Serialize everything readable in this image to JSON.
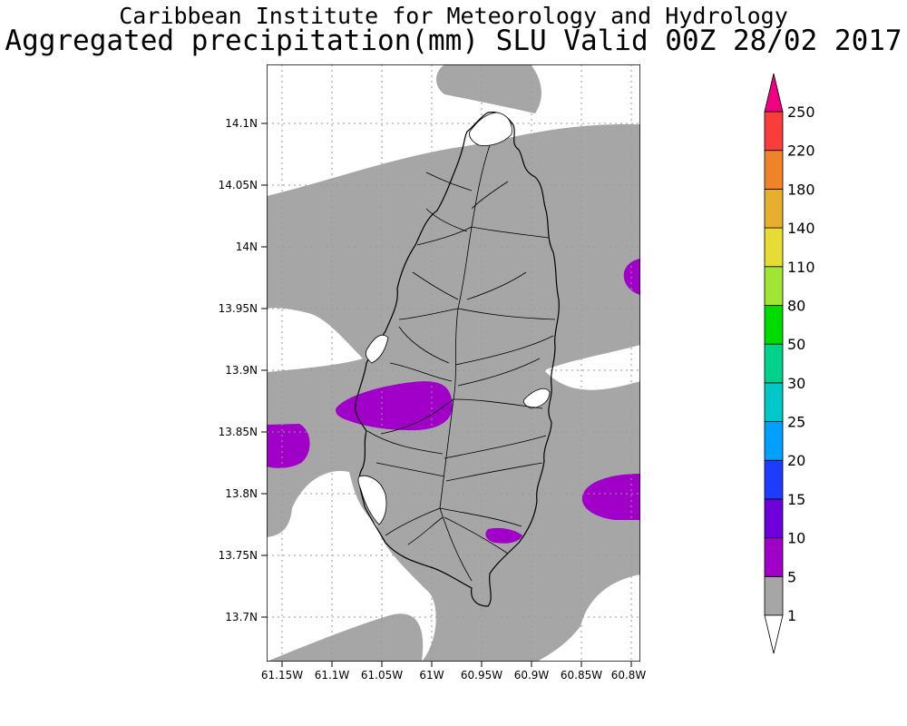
{
  "header": {
    "org": "Caribbean Institute for Meteorology and Hydrology",
    "title": "Aggregated precipitation(mm) SLU Valid 00Z 28/02 2017"
  },
  "map": {
    "region": "Saint Lucia",
    "lon_range": [
      -61.163,
      -60.79
    ],
    "lat_range": [
      13.663,
      14.148
    ],
    "x_ticks": [
      "61.15W",
      "61.1W",
      "61.05W",
      "61W",
      "60.95W",
      "60.9W",
      "60.85W",
      "60.8W"
    ],
    "y_ticks": [
      "14.1N",
      "14.05N",
      "14N",
      "13.95N",
      "13.9N",
      "13.85N",
      "13.8N",
      "13.75N",
      "13.7N"
    ],
    "colors": {
      "band_1_5": "#a6a6a6",
      "band_5_10": "#a000c8",
      "background": "#ffffff"
    }
  },
  "colorbar": {
    "labels": [
      "1",
      "5",
      "10",
      "15",
      "20",
      "25",
      "30",
      "50",
      "80",
      "110",
      "140",
      "180",
      "220",
      "250"
    ],
    "colors": [
      "#a6a6a6",
      "#a000c8",
      "#6e00dc",
      "#1e3cff",
      "#00a0ff",
      "#00c8c8",
      "#00d28c",
      "#00dc00",
      "#a0e632",
      "#e6dc32",
      "#e6af2d",
      "#f08228",
      "#fa3c3c",
      "#f00082"
    ],
    "low_color": "#ffffff",
    "high_color": "#f00082"
  }
}
